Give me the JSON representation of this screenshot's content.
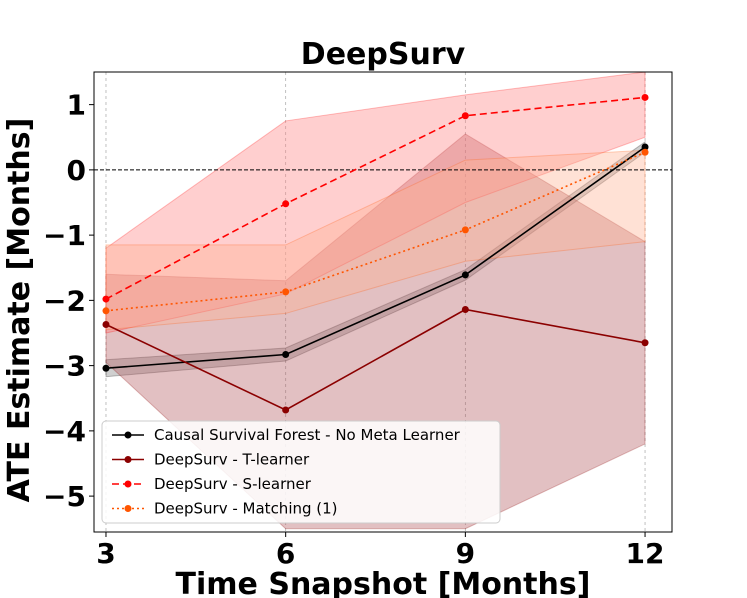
{
  "chart_data": {
    "type": "line",
    "title": "DeepSurv",
    "xlabel": "Time Snapshot [Months]",
    "ylabel": "ATE Estimate [Months]",
    "x": [
      3,
      6,
      9,
      12
    ],
    "xlim": [
      2.8,
      12.45
    ],
    "ylim": [
      -5.55,
      1.5
    ],
    "xticks": [
      3,
      6,
      9,
      12
    ],
    "yticks": [
      -5,
      -4,
      -3,
      -2,
      -1,
      0,
      1
    ],
    "ytick_labels": [
      "−5",
      "−4",
      "−3",
      "−2",
      "−1",
      "0",
      "1"
    ],
    "zero_line": 0,
    "grid": "vertical-only",
    "legend_position": "lower-left",
    "series": [
      {
        "name": "Causal Survival Forest - No Meta Learner",
        "values": [
          -3.04,
          -2.83,
          -1.61,
          0.35
        ],
        "lower": [
          -3.17,
          -2.93,
          -1.69,
          0.27
        ],
        "upper": [
          -2.91,
          -2.73,
          -1.53,
          0.43
        ],
        "color": "#000000",
        "fill": "#808080",
        "dash": "solid"
      },
      {
        "name": "DeepSurv - T-learner",
        "values": [
          -2.37,
          -3.68,
          -2.14,
          -2.65
        ],
        "lower": [
          -2.95,
          -5.5,
          -5.5,
          -4.2
        ],
        "upper": [
          -1.6,
          -1.7,
          0.55,
          -1.1
        ],
        "color": "#8b0000",
        "fill": "#b35a5f",
        "dash": "solid"
      },
      {
        "name": "DeepSurv - S-learner",
        "values": [
          -1.98,
          -0.52,
          0.83,
          1.11
        ],
        "lower": [
          -2.5,
          -1.9,
          -0.5,
          0.5
        ],
        "upper": [
          -1.2,
          0.75,
          1.15,
          1.5
        ],
        "color": "#ff0000",
        "fill": "#ff8080",
        "dash": "dashed"
      },
      {
        "name": "DeepSurv - Matching (1)",
        "values": [
          -2.16,
          -1.87,
          -0.92,
          0.27
        ],
        "lower": [
          -2.45,
          -2.2,
          -1.4,
          -1.1
        ],
        "upper": [
          -1.15,
          -1.15,
          0.15,
          0.3
        ],
        "color": "#ff5500",
        "fill": "#ffb090",
        "dash": "dotted"
      }
    ]
  }
}
